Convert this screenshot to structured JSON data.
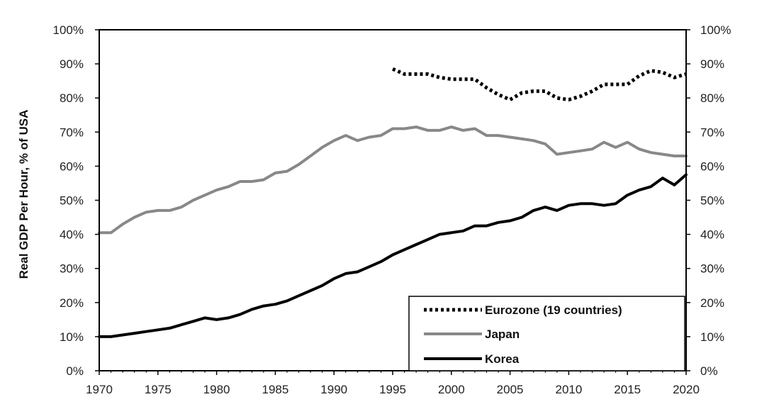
{
  "chart_data": {
    "type": "line",
    "ylabel": "Real GDP Per Hour, % of USA",
    "xlabel": "",
    "title": "",
    "xlim": [
      1970,
      2020
    ],
    "ylim": [
      0,
      100
    ],
    "x_ticks": [
      "1970",
      "1975",
      "1980",
      "1985",
      "1990",
      "1995",
      "2000",
      "2005",
      "2010",
      "2015",
      "2020"
    ],
    "y_ticks": [
      "0%",
      "10%",
      "20%",
      "30%",
      "40%",
      "50%",
      "60%",
      "70%",
      "80%",
      "90%",
      "100%"
    ],
    "secondary_y_axis": true,
    "grid": false,
    "legend_position": "bottom-right",
    "series": [
      {
        "name": "Eurozone (19 countries)",
        "style": "dotted",
        "color": "#000000",
        "x": [
          1995,
          1996,
          1997,
          1998,
          1999,
          2000,
          2001,
          2002,
          2003,
          2004,
          2005,
          2006,
          2007,
          2008,
          2009,
          2010,
          2011,
          2012,
          2013,
          2014,
          2015,
          2016,
          2017,
          2018,
          2019,
          2020
        ],
        "values": [
          88.5,
          87,
          87,
          87,
          86,
          85.5,
          85.5,
          85.5,
          83,
          81,
          79.5,
          81.5,
          82,
          82,
          80,
          79.5,
          80.5,
          82,
          84,
          84,
          84,
          86.5,
          88,
          87.5,
          86,
          87
        ]
      },
      {
        "name": "Japan",
        "style": "solid",
        "color": "#888888",
        "x": [
          1970,
          1971,
          1972,
          1973,
          1974,
          1975,
          1976,
          1977,
          1978,
          1979,
          1980,
          1981,
          1982,
          1983,
          1984,
          1985,
          1986,
          1987,
          1988,
          1989,
          1990,
          1991,
          1992,
          1993,
          1994,
          1995,
          1996,
          1997,
          1998,
          1999,
          2000,
          2001,
          2002,
          2003,
          2004,
          2005,
          2006,
          2007,
          2008,
          2009,
          2010,
          2011,
          2012,
          2013,
          2014,
          2015,
          2016,
          2017,
          2018,
          2019,
          2020
        ],
        "values": [
          40.5,
          40.5,
          43,
          45,
          46.5,
          47,
          47,
          48,
          50,
          51.5,
          53,
          54,
          55.5,
          55.5,
          56,
          58,
          58.5,
          60.5,
          63,
          65.5,
          67.5,
          69,
          67.5,
          68.5,
          69,
          71,
          71,
          71.5,
          70.5,
          70.5,
          71.5,
          70.5,
          71,
          69,
          69,
          68.5,
          68,
          67.5,
          66.5,
          63.5,
          64,
          64.5,
          65,
          67,
          65.5,
          67,
          65,
          64,
          63.5,
          63,
          63
        ]
      },
      {
        "name": "Korea",
        "style": "solid",
        "color": "#000000",
        "x": [
          1970,
          1971,
          1972,
          1973,
          1974,
          1975,
          1976,
          1977,
          1978,
          1979,
          1980,
          1981,
          1982,
          1983,
          1984,
          1985,
          1986,
          1987,
          1988,
          1989,
          1990,
          1991,
          1992,
          1993,
          1994,
          1995,
          1996,
          1997,
          1998,
          1999,
          2000,
          2001,
          2002,
          2003,
          2004,
          2005,
          2006,
          2007,
          2008,
          2009,
          2010,
          2011,
          2012,
          2013,
          2014,
          2015,
          2016,
          2017,
          2018,
          2019,
          2020
        ],
        "values": [
          10,
          10,
          10.5,
          11,
          11.5,
          12,
          12.5,
          13.5,
          14.5,
          15.5,
          15,
          15.5,
          16.5,
          18,
          19,
          19.5,
          20.5,
          22,
          23.5,
          25,
          27,
          28.5,
          29,
          30.5,
          32,
          34,
          35.5,
          37,
          38.5,
          40,
          40.5,
          41,
          42.5,
          42.5,
          43.5,
          44,
          45,
          47,
          48,
          47,
          48.5,
          49,
          49,
          48.5,
          49,
          51.5,
          53,
          54,
          56.5,
          54.5,
          57.5
        ]
      }
    ]
  }
}
